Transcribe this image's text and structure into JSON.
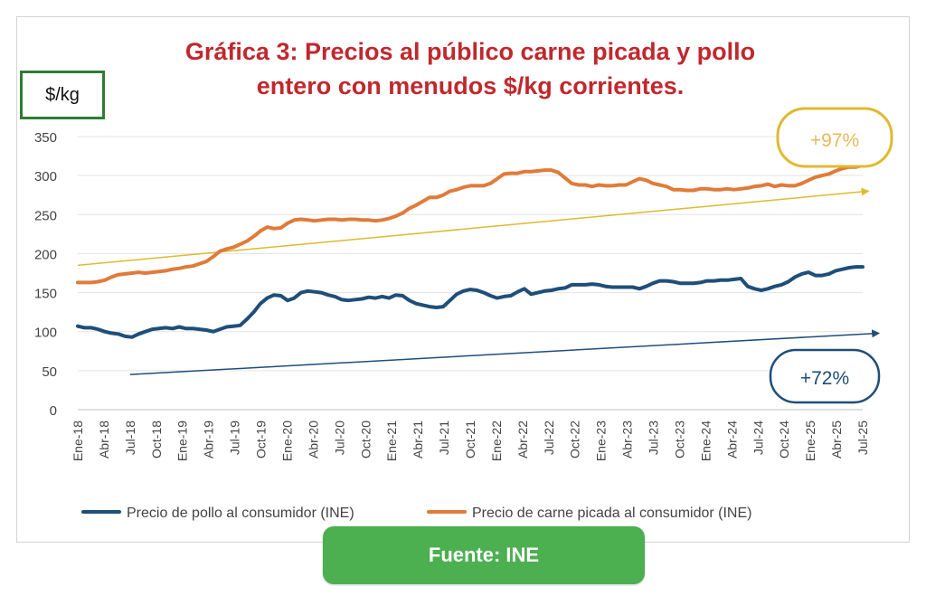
{
  "title_line1": "Gráfica 3: Precios al público carne picada y pollo",
  "title_line2": "entero con menudos  $/kg corrientes.",
  "unit_label": "$/kg",
  "source_label": "Fuente: INE",
  "chart_data": {
    "type": "line",
    "title": "Gráfica 3: Precios al público carne picada y pollo entero con menudos  $/kg corrientes.",
    "ylabel": "$/kg",
    "ylim": [
      0,
      350
    ],
    "yticks": [
      0,
      50,
      100,
      150,
      200,
      250,
      300,
      350
    ],
    "grid": true,
    "legend_position": "bottom",
    "x_tick_labels": [
      "Ene-18",
      "Abr-18",
      "Jul-18",
      "Oct-18",
      "Ene-19",
      "Abr-19",
      "Jul-19",
      "Oct-19",
      "Ene-20",
      "Abr-20",
      "Jul-20",
      "Oct-20",
      "Ene-21",
      "Abr-21",
      "Jul-21",
      "Oct-21",
      "Ene-22",
      "Abr-22",
      "Jul-22",
      "Oct-22",
      "Ene-23",
      "Abr-23",
      "Jul-23",
      "Oct-23",
      "Ene-24",
      "Abr-24",
      "Jul-24",
      "Oct-24",
      "Ene-25",
      "Abr-25",
      "Jul-25"
    ],
    "series": [
      {
        "name": "Precio de pollo al consumidor (INE)",
        "color": "#1f4e79",
        "values": [
          107,
          105,
          105,
          103,
          100,
          98,
          97,
          94,
          93,
          97,
          100,
          103,
          104,
          105,
          104,
          106,
          104,
          104,
          103,
          102,
          100,
          103,
          106,
          107,
          108,
          116,
          125,
          136,
          143,
          147,
          146,
          140,
          143,
          150,
          152,
          151,
          150,
          147,
          145,
          141,
          140,
          141,
          142,
          144,
          143,
          145,
          143,
          147,
          146,
          140,
          136,
          134,
          132,
          131,
          132,
          140,
          148,
          152,
          154,
          153,
          150,
          146,
          143,
          145,
          146,
          151,
          155,
          148,
          150,
          152,
          153,
          155,
          156,
          160,
          160,
          160,
          161,
          160,
          158,
          157,
          157,
          157,
          157,
          155,
          158,
          162,
          165,
          165,
          164,
          162,
          162,
          162,
          163,
          165,
          165,
          166,
          166,
          167,
          168,
          158,
          155,
          153,
          155,
          158,
          160,
          164,
          170,
          174,
          176,
          172,
          172,
          174,
          178,
          180,
          182,
          183,
          183
        ]
      },
      {
        "name": "Precio de carne picada al consumidor (INE)",
        "color": "#e07b39",
        "values": [
          163,
          163,
          163,
          164,
          166,
          170,
          173,
          174,
          175,
          176,
          175,
          176,
          177,
          178,
          180,
          181,
          183,
          184,
          187,
          190,
          196,
          203,
          206,
          208,
          212,
          216,
          222,
          229,
          234,
          232,
          233,
          239,
          243,
          244,
          243,
          242,
          243,
          244,
          244,
          243,
          244,
          244,
          243,
          243,
          242,
          243,
          245,
          248,
          252,
          258,
          262,
          267,
          272,
          272,
          275,
          280,
          282,
          285,
          287,
          287,
          287,
          290,
          296,
          302,
          303,
          303,
          305,
          305,
          306,
          307,
          307,
          304,
          297,
          290,
          288,
          288,
          286,
          288,
          287,
          287,
          288,
          288,
          292,
          296,
          294,
          290,
          288,
          286,
          282,
          282,
          281,
          281,
          283,
          283,
          282,
          282,
          283,
          282,
          283,
          284,
          286,
          287,
          289,
          286,
          288,
          287,
          287,
          290,
          294,
          298,
          300,
          302,
          306,
          309,
          311,
          311,
          313
        ]
      }
    ],
    "annotations": [
      {
        "text": "+97%",
        "color": "#e0b930",
        "trend_from": [
          0,
          185
        ],
        "trend_to": [
          30.2,
          280
        ]
      },
      {
        "text": "+72%",
        "color": "#1f4e79",
        "trend_from": [
          2,
          45
        ],
        "trend_to": [
          30.6,
          98
        ]
      }
    ]
  }
}
